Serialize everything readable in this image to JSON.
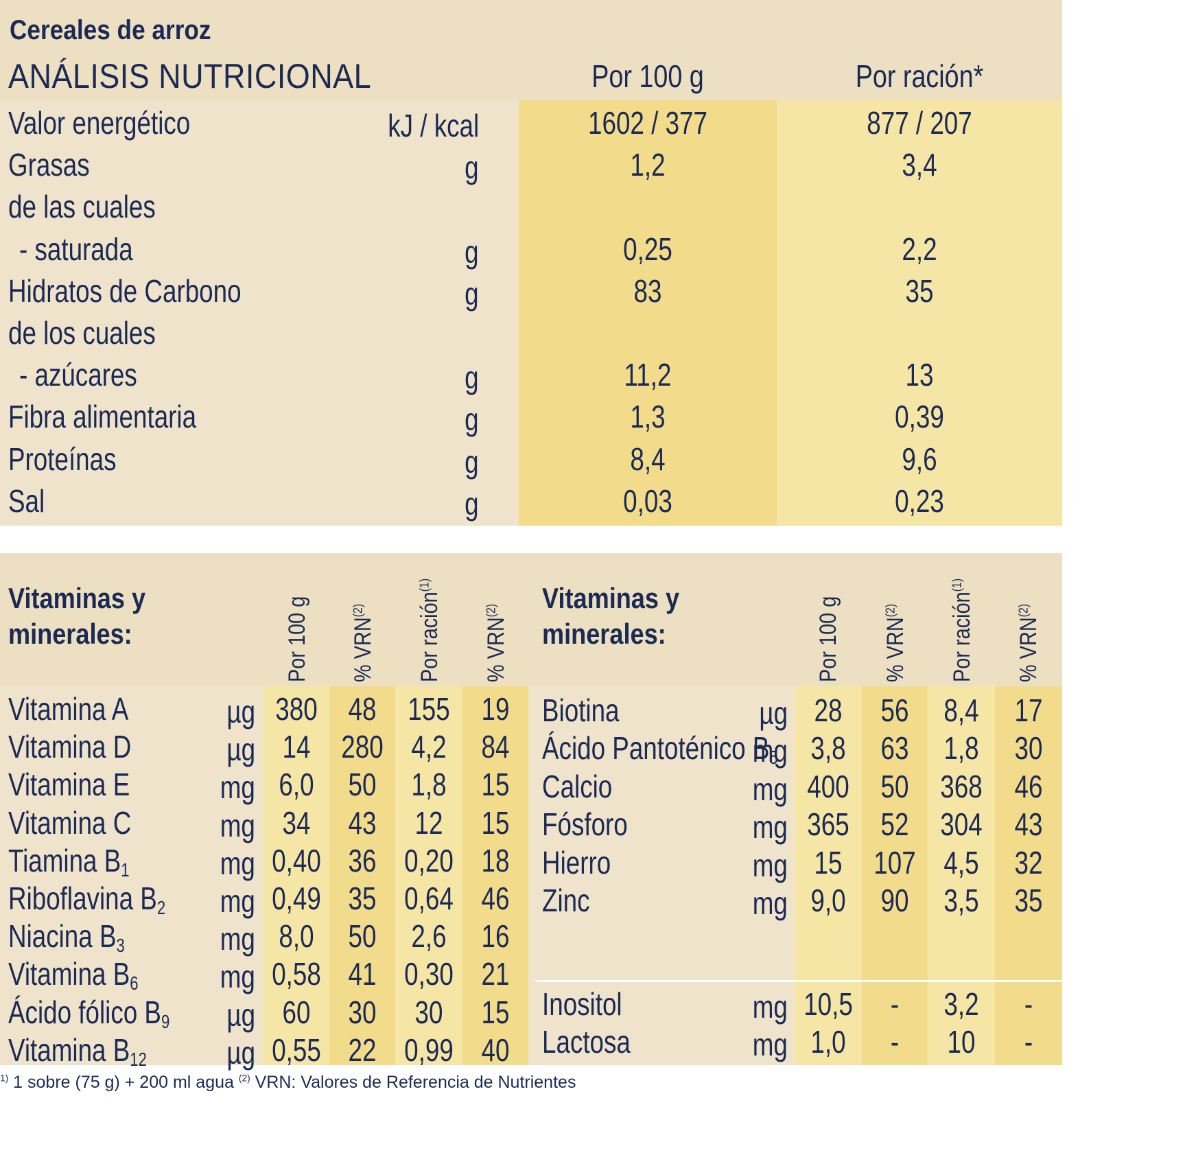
{
  "product_title": "Cereales de arroz",
  "analysis_title": "ANÁLISIS NUTRICIONAL",
  "top_headers": {
    "per100": "Por 100 g",
    "per_serving": "Por ración*"
  },
  "nutrition_rows": [
    {
      "label": "Valor energético",
      "unit": "kJ / kcal",
      "per100": "1602 / 377",
      "per_serving": "877 / 207",
      "indent": false
    },
    {
      "label": "Grasas",
      "unit": "g",
      "per100": "1,2",
      "per_serving": "3,4",
      "indent": false
    },
    {
      "label": "de las cuales",
      "unit": "",
      "per100": "",
      "per_serving": "",
      "indent": false
    },
    {
      "label": "- saturada",
      "unit": "g",
      "per100": "0,25",
      "per_serving": "2,2",
      "indent": true
    },
    {
      "label": "Hidratos de Carbono",
      "unit": "g",
      "per100": "83",
      "per_serving": "35",
      "indent": false
    },
    {
      "label": "de los cuales",
      "unit": "",
      "per100": "",
      "per_serving": "",
      "indent": false
    },
    {
      "label": "- azúcares",
      "unit": "g",
      "per100": "11,2",
      "per_serving": "13",
      "indent": true
    },
    {
      "label": "Fibra alimentaria",
      "unit": "g",
      "per100": "1,3",
      "per_serving": "0,39",
      "indent": false
    },
    {
      "label": "Proteínas",
      "unit": "g",
      "per100": "8,4",
      "per_serving": "9,6",
      "indent": false
    },
    {
      "label": "Sal",
      "unit": "g",
      "per100": "0,03",
      "per_serving": "0,23",
      "indent": false
    }
  ],
  "vitamins_title_line1": "Vitaminas y",
  "vitamins_title_line2": "minerales:",
  "vit_headers": {
    "per100": "Por 100 g",
    "vrn": "% VRN",
    "vrn_ref": "(2)",
    "per_serving": "Por ración",
    "serving_ref": "(1)"
  },
  "vitamins_left": [
    {
      "name": "Vitamina A",
      "sub": "",
      "unit": "µg",
      "per100": "380",
      "vrn100": "48",
      "serving": "155",
      "vrnserv": "19"
    },
    {
      "name": "Vitamina D",
      "sub": "",
      "unit": "µg",
      "per100": "14",
      "vrn100": "280",
      "serving": "4,2",
      "vrnserv": "84"
    },
    {
      "name": "Vitamina E",
      "sub": "",
      "unit": "mg",
      "per100": "6,0",
      "vrn100": "50",
      "serving": "1,8",
      "vrnserv": "15"
    },
    {
      "name": "Vitamina C",
      "sub": "",
      "unit": "mg",
      "per100": "34",
      "vrn100": "43",
      "serving": "12",
      "vrnserv": "15"
    },
    {
      "name": "Tiamina B",
      "sub": "1",
      "unit": "mg",
      "per100": "0,40",
      "vrn100": "36",
      "serving": "0,20",
      "vrnserv": "18"
    },
    {
      "name": "Riboflavina B",
      "sub": "2",
      "unit": "mg",
      "per100": "0,49",
      "vrn100": "35",
      "serving": "0,64",
      "vrnserv": "46"
    },
    {
      "name": "Niacina B",
      "sub": "3",
      "unit": "mg",
      "per100": "8,0",
      "vrn100": "50",
      "serving": "2,6",
      "vrnserv": "16"
    },
    {
      "name": "Vitamina B",
      "sub": "6",
      "unit": "mg",
      "per100": "0,58",
      "vrn100": "41",
      "serving": "0,30",
      "vrnserv": "21"
    },
    {
      "name": "Ácido fólico B",
      "sub": "9",
      "unit": "µg",
      "per100": "60",
      "vrn100": "30",
      "serving": "30",
      "vrnserv": "15"
    },
    {
      "name": "Vitamina B",
      "sub": "12",
      "unit": "µg",
      "per100": "0,55",
      "vrn100": "22",
      "serving": "0,99",
      "vrnserv": "40"
    }
  ],
  "vitamins_right": [
    {
      "name": "Biotina",
      "sub": "",
      "unit": "µg",
      "per100": "28",
      "vrn100": "56",
      "serving": "8,4",
      "vrnserv": "17"
    },
    {
      "name": "Ácido Pantoténico B",
      "sub": "5",
      "unit": "mg",
      "per100": "3,8",
      "vrn100": "63",
      "serving": "1,8",
      "vrnserv": "30"
    },
    {
      "name": "Calcio",
      "sub": "",
      "unit": "mg",
      "per100": "400",
      "vrn100": "50",
      "serving": "368",
      "vrnserv": "46"
    },
    {
      "name": "Fósforo",
      "sub": "",
      "unit": "mg",
      "per100": "365",
      "vrn100": "52",
      "serving": "304",
      "vrnserv": "43"
    },
    {
      "name": "Hierro",
      "sub": "",
      "unit": "mg",
      "per100": "15",
      "vrn100": "107",
      "serving": "4,5",
      "vrnserv": "32"
    },
    {
      "name": "Zinc",
      "sub": "",
      "unit": "mg",
      "per100": "9,0",
      "vrn100": "90",
      "serving": "3,5",
      "vrnserv": "35"
    }
  ],
  "others_right": [
    {
      "name": "Inositol",
      "sub": "",
      "unit": "mg",
      "per100": "10,5",
      "vrn100": "-",
      "serving": "3,2",
      "vrnserv": "-"
    },
    {
      "name": "Lactosa",
      "sub": "",
      "unit": "mg",
      "per100": "1,0",
      "vrn100": "-",
      "serving": "10",
      "vrnserv": "-"
    }
  ],
  "footnote": {
    "ref1": "1)",
    "text1": " 1 sobre (75 g) + 200 ml agua  ",
    "ref2": "(2)",
    "text2": " VRN: Valores de Referencia de Nutrientes"
  },
  "colors": {
    "text": "#1b2a55",
    "header_bg": "#ede0c2",
    "row_bg": "#efe4cb",
    "col_dark": "#f2dc8c",
    "col_light": "#f6e6a6"
  }
}
